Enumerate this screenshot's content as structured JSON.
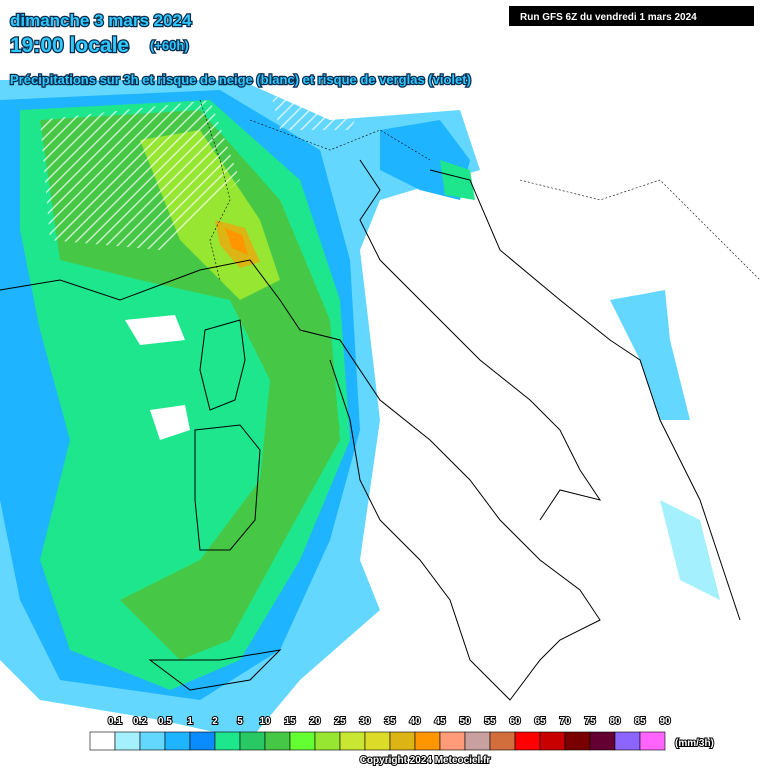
{
  "header": {
    "date": "dimanche 3 mars 2024",
    "time": "19:00 locale",
    "lead": "(+60h)",
    "description": "Précipitations sur 3h et risque de neige (blanc) et risque de verglas (violet)",
    "run": "Run GFS 6Z du vendredi 1 mars 2024"
  },
  "legend": {
    "ticks": [
      0.1,
      0.2,
      0.5,
      1,
      2,
      5,
      10,
      15,
      20,
      25,
      30,
      35,
      40,
      45,
      50,
      55,
      60,
      65,
      70,
      75,
      80,
      85,
      90
    ],
    "colors": [
      "#ffffff",
      "#a5f0ff",
      "#64d7ff",
      "#1eb4ff",
      "#0a8cff",
      "#1ee68c",
      "#28c864",
      "#46c846",
      "#64ff32",
      "#96e632",
      "#c8e632",
      "#dcdc28",
      "#dcb414",
      "#ff9600",
      "#ff9b78",
      "#c8a0a0",
      "#d26e3c",
      "#ff0000",
      "#c80000",
      "#780000",
      "#640032",
      "#8c64ff",
      "#ff64ff"
    ],
    "unit": "(mm/3h)"
  },
  "footer": {
    "copyright": "Copyright 2024 Meteociel.fr"
  }
}
